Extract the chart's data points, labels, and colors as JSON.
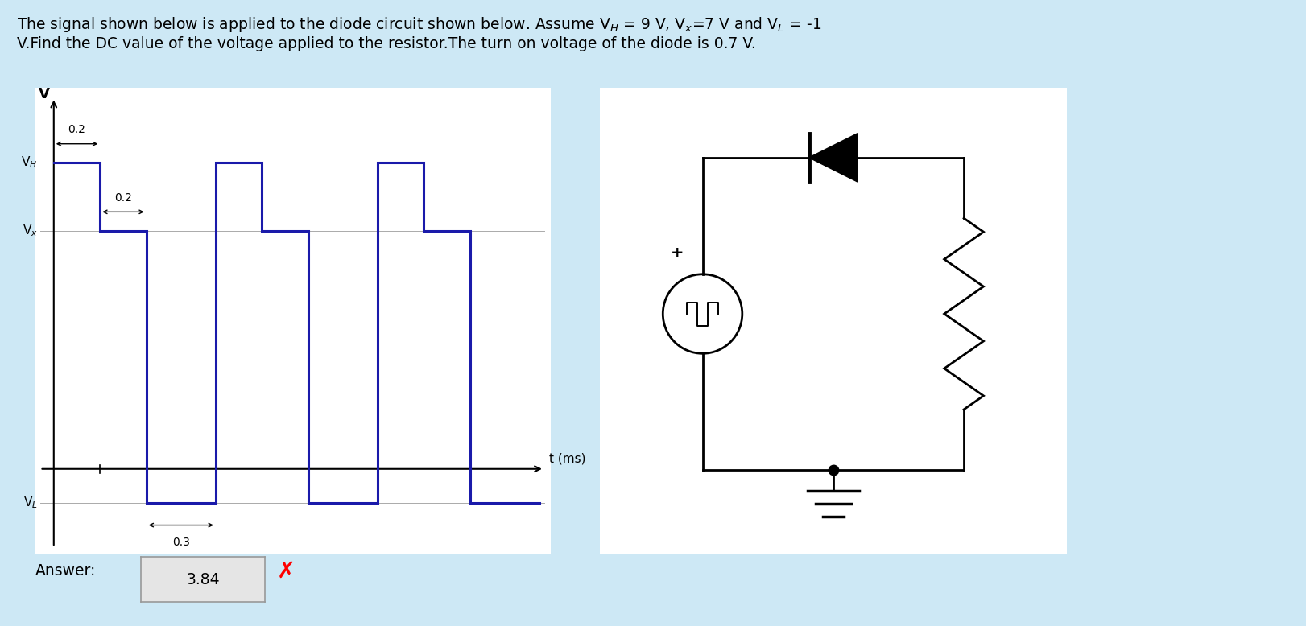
{
  "bg_color": "#cde8f5",
  "signal_panel_bg": "#ffffff",
  "circuit_panel_bg": "#ffffff",
  "signal_color": "#1a1aaa",
  "VH": 9,
  "Vx": 7,
  "VL": -1,
  "answer_text": "3.84",
  "waveform_t": [
    0,
    0.2,
    0.2,
    0.4,
    0.4,
    0.7,
    0.7,
    0.9,
    0.9,
    1.1,
    1.1,
    1.4,
    1.4,
    1.6,
    1.6,
    1.8,
    1.8,
    2.1
  ],
  "waveform_v": [
    9,
    9,
    7,
    7,
    -1,
    -1,
    9,
    9,
    7,
    7,
    -1,
    -1,
    9,
    9,
    7,
    7,
    -1,
    -1
  ]
}
